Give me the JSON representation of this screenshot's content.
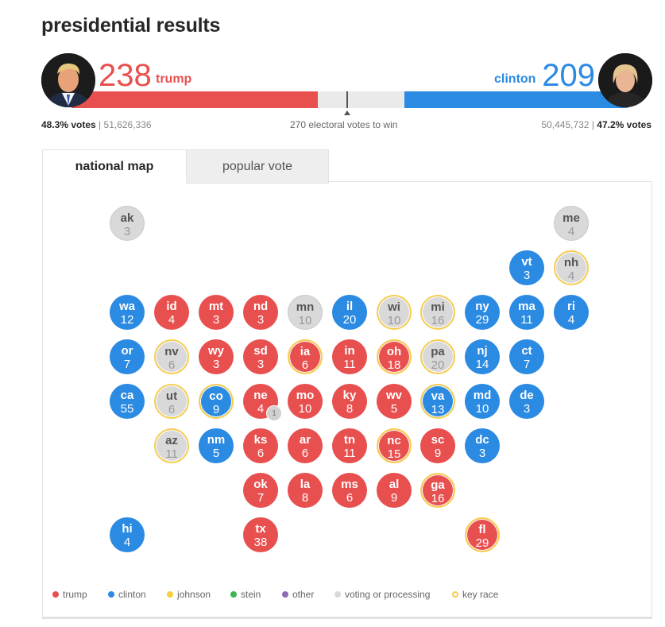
{
  "page_title": "presidential results",
  "trump": {
    "name": "trump",
    "electoral_votes": "238",
    "vote_pct": "48.3% votes",
    "popular_votes": "51,626,336",
    "color": "#e8504f"
  },
  "clinton": {
    "name": "clinton",
    "electoral_votes": "209",
    "vote_pct": "47.2% votes",
    "popular_votes": "50,445,732",
    "color": "#2b8ae2"
  },
  "to_win": "270 electoral votes to win",
  "tabs": [
    {
      "label": "national map",
      "active": true
    },
    {
      "label": "popular vote",
      "active": false
    }
  ],
  "states": {
    "ak": {
      "abbr": "ak",
      "ev": "3",
      "status": "voting or processing"
    },
    "me": {
      "abbr": "me",
      "ev": "4",
      "status": "voting or processing"
    },
    "vt": {
      "abbr": "vt",
      "ev": "3",
      "status": "clinton"
    },
    "nh": {
      "abbr": "nh",
      "ev": "4",
      "status": "voting or processing",
      "key_race": true
    },
    "wa": {
      "abbr": "wa",
      "ev": "12",
      "status": "clinton"
    },
    "id": {
      "abbr": "id",
      "ev": "4",
      "status": "trump"
    },
    "mt": {
      "abbr": "mt",
      "ev": "3",
      "status": "trump"
    },
    "nd": {
      "abbr": "nd",
      "ev": "3",
      "status": "trump"
    },
    "mn": {
      "abbr": "mn",
      "ev": "10",
      "status": "voting or processing"
    },
    "il": {
      "abbr": "il",
      "ev": "20",
      "status": "clinton"
    },
    "wi": {
      "abbr": "wi",
      "ev": "10",
      "status": "voting or processing",
      "key_race": true
    },
    "mi": {
      "abbr": "mi",
      "ev": "16",
      "status": "voting or processing",
      "key_race": true
    },
    "ny": {
      "abbr": "ny",
      "ev": "29",
      "status": "clinton"
    },
    "ma": {
      "abbr": "ma",
      "ev": "11",
      "status": "clinton"
    },
    "ri": {
      "abbr": "ri",
      "ev": "4",
      "status": "clinton"
    },
    "or": {
      "abbr": "or",
      "ev": "7",
      "status": "clinton"
    },
    "nv": {
      "abbr": "nv",
      "ev": "6",
      "status": "voting or processing",
      "key_race": true
    },
    "wy": {
      "abbr": "wy",
      "ev": "3",
      "status": "trump"
    },
    "sd": {
      "abbr": "sd",
      "ev": "3",
      "status": "trump"
    },
    "ia": {
      "abbr": "ia",
      "ev": "6",
      "status": "trump",
      "key_race": true
    },
    "in": {
      "abbr": "in",
      "ev": "11",
      "status": "trump"
    },
    "oh": {
      "abbr": "oh",
      "ev": "18",
      "status": "trump",
      "key_race": true
    },
    "pa": {
      "abbr": "pa",
      "ev": "20",
      "status": "voting or processing",
      "key_race": true
    },
    "nj": {
      "abbr": "nj",
      "ev": "14",
      "status": "clinton"
    },
    "ct": {
      "abbr": "ct",
      "ev": "7",
      "status": "clinton"
    },
    "ca": {
      "abbr": "ca",
      "ev": "55",
      "status": "clinton"
    },
    "ut": {
      "abbr": "ut",
      "ev": "6",
      "status": "voting or processing",
      "key_race": true
    },
    "co": {
      "abbr": "co",
      "ev": "9",
      "status": "clinton",
      "key_race": true
    },
    "ne": {
      "abbr": "ne",
      "ev": "4",
      "status": "trump",
      "split_badge": "1"
    },
    "mo": {
      "abbr": "mo",
      "ev": "10",
      "status": "trump"
    },
    "ky": {
      "abbr": "ky",
      "ev": "8",
      "status": "trump"
    },
    "wv": {
      "abbr": "wv",
      "ev": "5",
      "status": "trump"
    },
    "va": {
      "abbr": "va",
      "ev": "13",
      "status": "clinton",
      "key_race": true
    },
    "md": {
      "abbr": "md",
      "ev": "10",
      "status": "clinton"
    },
    "de": {
      "abbr": "de",
      "ev": "3",
      "status": "clinton"
    },
    "az": {
      "abbr": "az",
      "ev": "11",
      "status": "voting or processing",
      "key_race": true
    },
    "nm": {
      "abbr": "nm",
      "ev": "5",
      "status": "clinton"
    },
    "ks": {
      "abbr": "ks",
      "ev": "6",
      "status": "trump"
    },
    "ar": {
      "abbr": "ar",
      "ev": "6",
      "status": "trump"
    },
    "tn": {
      "abbr": "tn",
      "ev": "11",
      "status": "trump"
    },
    "nc": {
      "abbr": "nc",
      "ev": "15",
      "status": "trump",
      "key_race": true
    },
    "sc": {
      "abbr": "sc",
      "ev": "9",
      "status": "trump"
    },
    "dc": {
      "abbr": "dc",
      "ev": "3",
      "status": "clinton"
    },
    "ok": {
      "abbr": "ok",
      "ev": "7",
      "status": "trump"
    },
    "la": {
      "abbr": "la",
      "ev": "8",
      "status": "trump"
    },
    "ms": {
      "abbr": "ms",
      "ev": "6",
      "status": "trump"
    },
    "al": {
      "abbr": "al",
      "ev": "9",
      "status": "trump"
    },
    "ga": {
      "abbr": "ga",
      "ev": "16",
      "status": "trump",
      "key_race": true
    },
    "hi": {
      "abbr": "hi",
      "ev": "4",
      "status": "clinton"
    },
    "tx": {
      "abbr": "tx",
      "ev": "38",
      "status": "trump"
    },
    "fl": {
      "abbr": "fl",
      "ev": "29",
      "status": "trump",
      "key_race": true
    }
  },
  "legend": [
    {
      "label": "trump",
      "color": "#e8504f"
    },
    {
      "label": "clinton",
      "color": "#2b8ae2"
    },
    {
      "label": "johnson",
      "color": "#f6cd3c"
    },
    {
      "label": "stein",
      "color": "#3cb552"
    },
    {
      "label": "other",
      "color": "#8e6bb5"
    },
    {
      "label": "voting or processing",
      "color": "#d9d9d9"
    },
    {
      "label": "key race",
      "color": "#f6cd52"
    }
  ]
}
